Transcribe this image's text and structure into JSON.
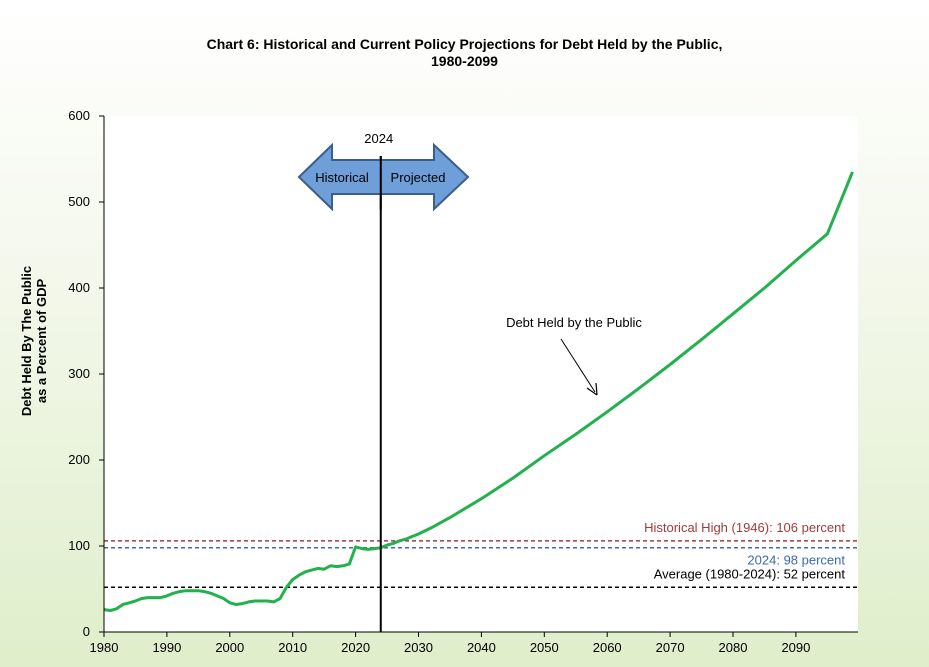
{
  "chart_data": {
    "type": "line",
    "title_line1": "Chart 6:  Historical and Current Policy Projections for Debt Held by the Public,",
    "title_line2": "1980-2099",
    "ylabel_line1": "Debt Held By The Public",
    "ylabel_line2": "as a Percent of GDP",
    "xlabel": "",
    "xlim": [
      1980,
      2099
    ],
    "ylim": [
      0,
      600
    ],
    "x_ticks": [
      1980,
      1990,
      2000,
      2010,
      2020,
      2030,
      2040,
      2050,
      2060,
      2070,
      2080,
      2090
    ],
    "y_ticks": [
      0,
      100,
      200,
      300,
      400,
      500,
      600
    ],
    "grid": false,
    "series": [
      {
        "name": "Debt Held by the Public",
        "color": "#22b14c",
        "x": [
          1980,
          1981,
          1982,
          1983,
          1984,
          1985,
          1986,
          1987,
          1988,
          1989,
          1990,
          1991,
          1992,
          1993,
          1994,
          1995,
          1996,
          1997,
          1998,
          1999,
          2000,
          2001,
          2002,
          2003,
          2004,
          2005,
          2006,
          2007,
          2008,
          2009,
          2010,
          2011,
          2012,
          2013,
          2014,
          2015,
          2016,
          2017,
          2018,
          2019,
          2020,
          2021,
          2022,
          2023,
          2024,
          2025,
          2026,
          2027,
          2028,
          2029,
          2030,
          2032,
          2035,
          2040,
          2045,
          2050,
          2055,
          2060,
          2065,
          2070,
          2075,
          2080,
          2085,
          2090,
          2095,
          2099
        ],
        "values": [
          26,
          25,
          27,
          32,
          34,
          36,
          39,
          40,
          40,
          40,
          42,
          45,
          47,
          48,
          48,
          48,
          47,
          45,
          42,
          39,
          34,
          32,
          33,
          35,
          36,
          36,
          36,
          35,
          39,
          52,
          61,
          66,
          70,
          72,
          74,
          73,
          77,
          76,
          77,
          79,
          99,
          97,
          96,
          97,
          98,
          101,
          103,
          106,
          108,
          111,
          114,
          121,
          133,
          155,
          179,
          205,
          230,
          256,
          283,
          311,
          340,
          370,
          400,
          432,
          463,
          535
        ]
      }
    ],
    "reference_lines": [
      {
        "label": "Historical High (1946): 106 percent",
        "value": 106,
        "color": "#a33a3a"
      },
      {
        "label": "2024: 98 percent",
        "value": 98,
        "color": "#3d6aa8"
      },
      {
        "label": "Average (1980-2024): 52 percent",
        "value": 52,
        "color": "#000000"
      }
    ],
    "vertical_marker": {
      "x": 2024,
      "label": "2024"
    },
    "arrow_labels": {
      "left": "Historical",
      "right": "Projected",
      "color": "#6f9fd8"
    },
    "series_annotation": "Debt Held by the Public"
  }
}
